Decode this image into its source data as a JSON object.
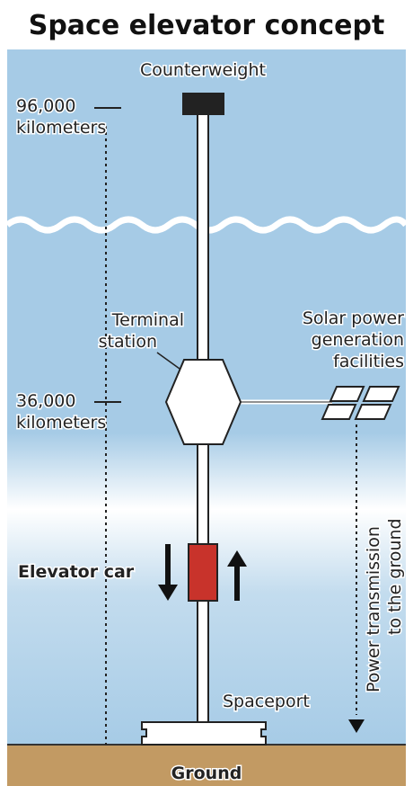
{
  "title": "Space elevator concept",
  "labels": {
    "counterweight": "Counterweight",
    "altitude_top": [
      "96,000",
      "kilometers"
    ],
    "terminal_station": [
      "Terminal",
      "station"
    ],
    "solar": [
      "Solar power",
      "generation",
      "facilities"
    ],
    "altitude_mid": [
      "36,000",
      "kilometers"
    ],
    "elevator_car": "Elevator car",
    "power_transmission": [
      "Power transmission",
      "to the ground"
    ],
    "spaceport": "Spaceport",
    "ground": "Ground"
  }
}
